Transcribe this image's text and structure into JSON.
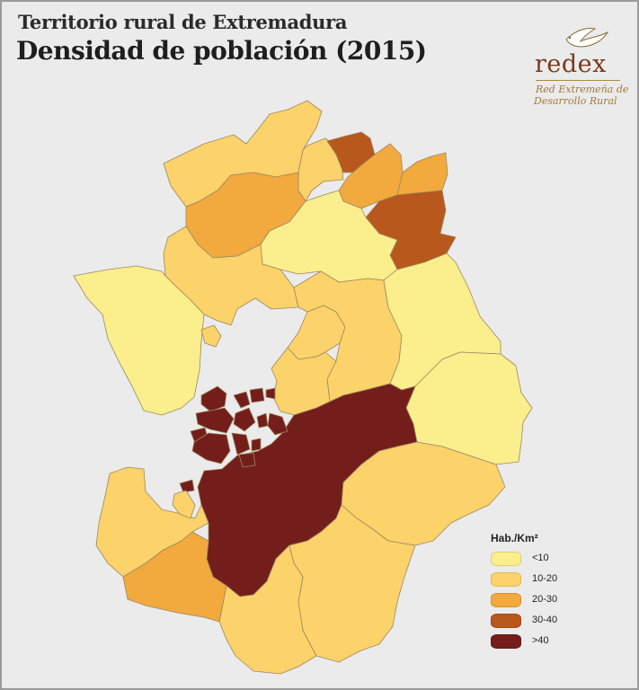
{
  "title_line1": "Territorio rural  de Extremadura",
  "title_line2": "Densidad de población (2015)",
  "logo": {
    "word": "redex",
    "subtitle_line1": "Red Extremeña de",
    "subtitle_line2": "Desarrollo  Rural"
  },
  "legend": {
    "title": "Hab./Km²",
    "items": [
      {
        "label": "<10",
        "color": "#fbee8c"
      },
      {
        "label": "10-20",
        "color": "#fcd26a"
      },
      {
        "label": "20-30",
        "color": "#f2a93d"
      },
      {
        "label": "30-40",
        "color": "#b8581c"
      },
      {
        "label": ">40",
        "color": "#741e1b"
      }
    ]
  },
  "colors": {
    "background": "#ebebeb",
    "border": "#9a9a9a",
    "region_outline": "#9c8862"
  }
}
